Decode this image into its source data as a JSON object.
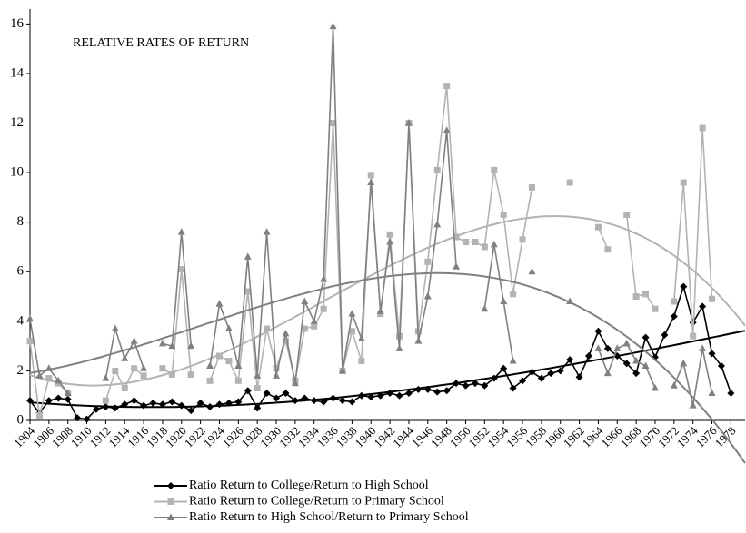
{
  "chart_data": {
    "type": "line",
    "title": "RELATIVE RATES OF RETURN",
    "x": [
      1904,
      1905,
      1906,
      1907,
      1908,
      1909,
      1910,
      1911,
      1912,
      1913,
      1914,
      1915,
      1916,
      1917,
      1918,
      1919,
      1920,
      1921,
      1922,
      1923,
      1924,
      1925,
      1926,
      1927,
      1928,
      1929,
      1930,
      1931,
      1932,
      1933,
      1934,
      1935,
      1936,
      1937,
      1938,
      1939,
      1940,
      1941,
      1942,
      1943,
      1944,
      1945,
      1946,
      1947,
      1948,
      1949,
      1950,
      1951,
      1952,
      1953,
      1954,
      1955,
      1956,
      1957,
      1958,
      1959,
      1960,
      1961,
      1962,
      1963,
      1964,
      1965,
      1966,
      1967,
      1968,
      1969,
      1970,
      1971,
      1972,
      1973,
      1974,
      1975,
      1976,
      1977,
      1978
    ],
    "series": [
      {
        "name": "Ratio Return to College/Return to High School",
        "color": "#000000",
        "marker": "diamond",
        "values": [
          0.8,
          0.3,
          0.8,
          0.9,
          0.85,
          0.1,
          0.05,
          0.45,
          0.55,
          0.5,
          0.65,
          0.8,
          0.6,
          0.7,
          0.65,
          0.75,
          0.6,
          0.4,
          0.7,
          0.55,
          0.65,
          0.7,
          0.75,
          1.2,
          0.5,
          1.1,
          0.9,
          1.1,
          0.8,
          0.9,
          0.8,
          0.75,
          0.9,
          0.8,
          0.75,
          1.0,
          0.95,
          1.0,
          1.1,
          1.0,
          1.1,
          1.25,
          1.25,
          1.15,
          1.2,
          1.5,
          1.4,
          1.5,
          1.4,
          1.7,
          2.1,
          1.3,
          1.6,
          1.95,
          1.7,
          1.9,
          2.0,
          2.45,
          1.75,
          2.6,
          3.6,
          2.9,
          2.6,
          2.3,
          1.9,
          3.35,
          2.55,
          3.45,
          4.2,
          5.4,
          3.95,
          4.6,
          2.7,
          2.2,
          1.1
        ]
      },
      {
        "name": "Ratio Return to College/Return to Primary School",
        "color": "#b3b3b3",
        "marker": "square",
        "values": [
          3.2,
          0.2,
          1.7,
          1.5,
          1.1,
          null,
          null,
          null,
          0.8,
          2.0,
          1.3,
          2.1,
          1.8,
          null,
          2.1,
          1.85,
          6.1,
          1.85,
          null,
          1.6,
          2.6,
          2.4,
          1.6,
          5.2,
          1.3,
          3.7,
          2.1,
          3.2,
          1.6,
          3.7,
          3.8,
          4.5,
          12.0,
          2.0,
          3.6,
          2.4,
          9.9,
          4.3,
          7.5,
          3.4,
          12.0,
          3.6,
          6.4,
          10.1,
          13.5,
          7.4,
          7.2,
          7.2,
          7.0,
          10.1,
          8.3,
          5.1,
          7.3,
          9.4,
          null,
          null,
          null,
          9.6,
          null,
          null,
          7.8,
          6.9,
          null,
          8.3,
          5.0,
          5.1,
          4.5,
          null,
          4.8,
          9.6,
          3.4,
          11.8,
          4.9,
          null,
          null
        ]
      },
      {
        "name": "Ratio Return to High School/Return to Primary School",
        "color": "#808080",
        "marker": "triangle",
        "values": [
          4.1,
          1.8,
          2.1,
          1.6,
          1.1,
          null,
          null,
          null,
          1.7,
          3.7,
          2.5,
          3.2,
          2.1,
          null,
          3.1,
          3.0,
          7.6,
          3.0,
          null,
          2.2,
          4.7,
          3.7,
          2.2,
          6.6,
          1.8,
          7.6,
          1.8,
          3.5,
          1.5,
          4.8,
          4.0,
          5.7,
          15.9,
          2.0,
          4.3,
          3.3,
          9.6,
          4.4,
          7.2,
          2.9,
          12.0,
          3.2,
          5.0,
          7.9,
          11.7,
          6.2,
          null,
          null,
          4.5,
          7.1,
          4.8,
          2.4,
          null,
          6.0,
          null,
          null,
          null,
          4.8,
          null,
          null,
          2.9,
          1.9,
          2.9,
          3.1,
          2.4,
          2.2,
          1.3,
          null,
          1.4,
          2.3,
          0.6,
          2.9,
          1.1,
          null,
          null
        ]
      }
    ],
    "trendline": "polynomial",
    "trendline_order": 3,
    "xlim": [
      1904,
      1979.5
    ],
    "xticks": [
      1904,
      1906,
      1908,
      1910,
      1912,
      1914,
      1916,
      1918,
      1920,
      1922,
      1924,
      1926,
      1928,
      1930,
      1932,
      1934,
      1936,
      1938,
      1940,
      1942,
      1944,
      1946,
      1948,
      1950,
      1952,
      1954,
      1956,
      1958,
      1960,
      1962,
      1964,
      1966,
      1968,
      1970,
      1972,
      1974,
      1976,
      1978
    ],
    "ylim": [
      0,
      16.6
    ],
    "yticks": [
      0,
      2,
      4,
      6,
      8,
      10,
      12,
      14,
      16
    ],
    "grid": false
  }
}
